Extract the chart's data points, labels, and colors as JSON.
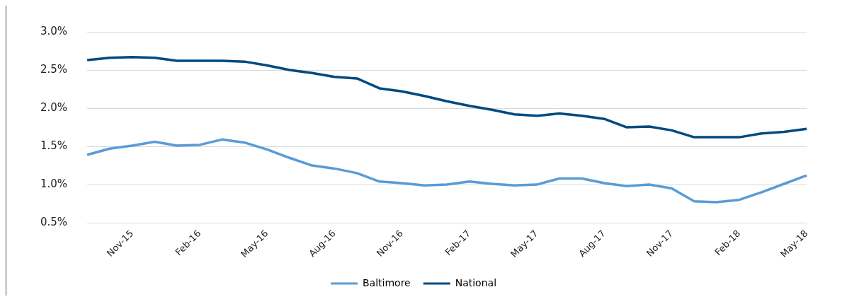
{
  "chart_data": {
    "type": "line",
    "categories": [
      null,
      null,
      "Nov-15",
      null,
      null,
      "Feb-16",
      null,
      null,
      "May-16",
      null,
      null,
      "Aug-16",
      null,
      null,
      "Nov-16",
      null,
      null,
      "Feb-17",
      null,
      null,
      "May-17",
      null,
      null,
      "Aug-17",
      null,
      null,
      "Nov-17",
      null,
      null,
      "Feb-18",
      null,
      null,
      "May-18"
    ],
    "series": [
      {
        "name": "Baltimore",
        "color": "#5b9bd5",
        "values": [
          1.39,
          1.47,
          1.51,
          1.56,
          1.51,
          1.52,
          1.59,
          1.55,
          1.46,
          1.35,
          1.25,
          1.21,
          1.15,
          1.04,
          1.02,
          0.99,
          1.0,
          1.04,
          1.01,
          0.99,
          1.0,
          1.08,
          1.08,
          1.02,
          0.98,
          1.0,
          0.95,
          0.78,
          0.77,
          0.8,
          0.9,
          1.01,
          1.12
        ]
      },
      {
        "name": "National",
        "color": "#004a80",
        "values": [
          2.63,
          2.66,
          2.67,
          2.66,
          2.62,
          2.62,
          2.62,
          2.61,
          2.56,
          2.5,
          2.46,
          2.41,
          2.39,
          2.26,
          2.22,
          2.16,
          2.09,
          2.03,
          1.98,
          1.92,
          1.9,
          1.93,
          1.9,
          1.86,
          1.75,
          1.76,
          1.71,
          1.62,
          1.62,
          1.62,
          1.67,
          1.69,
          1.73
        ]
      }
    ],
    "ylim": [
      0.5,
      3.0
    ],
    "yticks": [
      {
        "value": 0.5,
        "label": "0.5%"
      },
      {
        "value": 1.0,
        "label": "1.0%"
      },
      {
        "value": 1.5,
        "label": "1.5%"
      },
      {
        "value": 2.0,
        "label": "2.0%"
      },
      {
        "value": 2.5,
        "label": "2.5%"
      },
      {
        "value": 3.0,
        "label": "3.0%"
      }
    ],
    "grid": "y",
    "legend": "bottom",
    "marker": "none",
    "line_style": "solid"
  }
}
